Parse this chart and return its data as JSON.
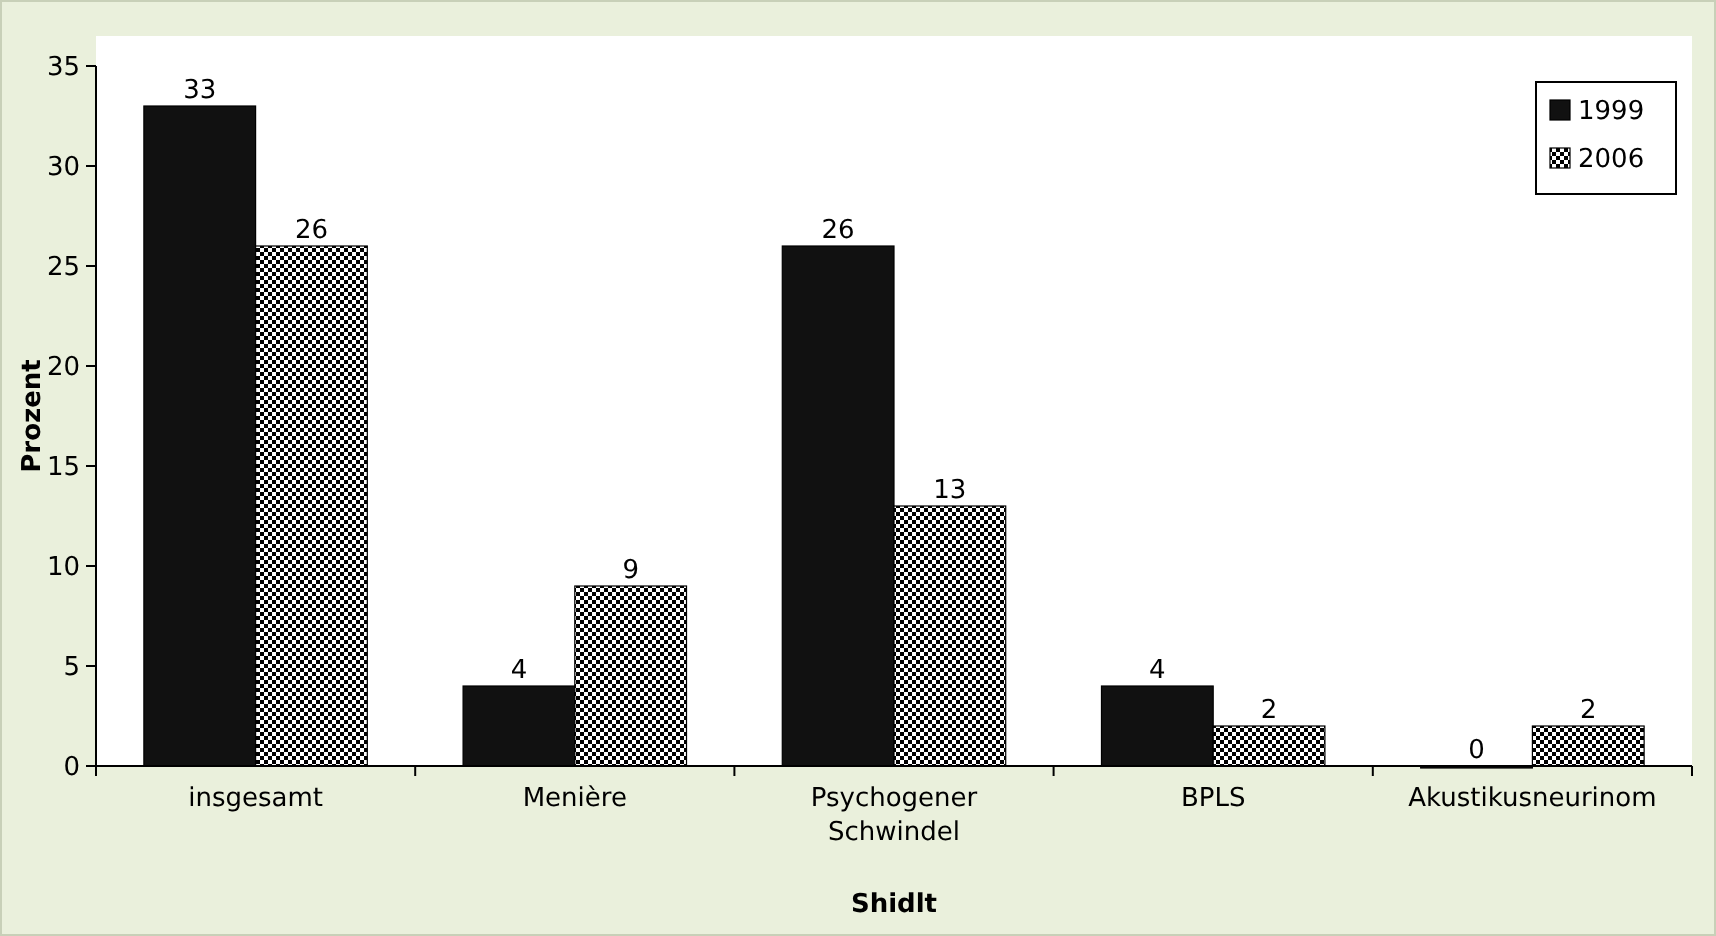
{
  "chart_data": {
    "type": "bar",
    "xlabel": "Shidlt",
    "ylabel": "Prozent",
    "categories": [
      "insgesamt",
      "Menière",
      "Psychogener Schwindel",
      "BPLS",
      "Akustikusneurinom"
    ],
    "series": [
      {
        "name": "1999",
        "color": "#111111",
        "values": [
          33,
          4,
          26,
          4,
          0
        ]
      },
      {
        "name": "2006",
        "color": "#000000",
        "values": [
          26,
          9,
          13,
          2,
          2
        ]
      }
    ],
    "ylim": [
      0,
      35
    ],
    "yticks": [
      0,
      5,
      10,
      15,
      20,
      25,
      30,
      35
    ],
    "grid": false,
    "legend": "top right",
    "data_labels": true
  }
}
